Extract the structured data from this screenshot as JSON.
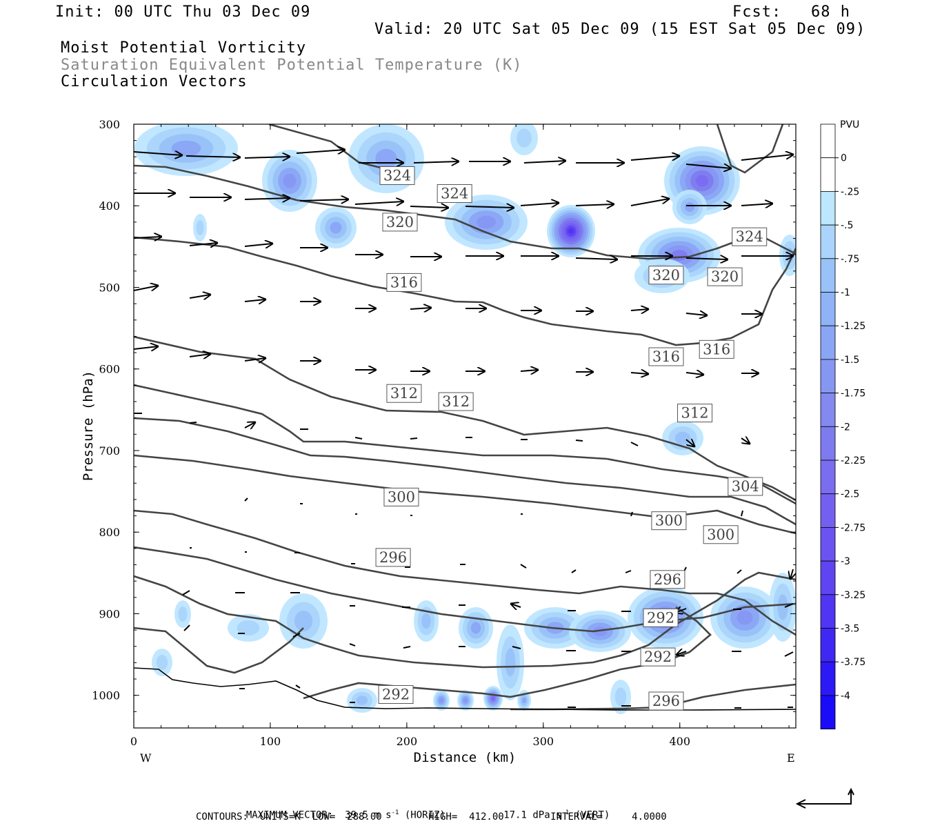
{
  "header": {
    "init": "Init: 00 UTC Thu 03 Dec 09",
    "fcst": "Fcst:   68 h",
    "valid": "Valid: 20 UTC Sat 05 Dec 09 (15 EST Sat 05 Dec 09)",
    "field1": "Moist Potential Vorticity",
    "field2": "Saturation Equivalent Potential Temperature (K)",
    "field3": "Circulation Vectors"
  },
  "footer": {
    "max_vector_label": "MAXIMUM VECTOR:",
    "horiz_value": "39.5 m s",
    "horiz_exp": "-1",
    "horiz_tag": "(HORIZ)",
    "vert_value": "17.1 dPa s",
    "vert_exp": "-1",
    "vert_tag": "(VERT)",
    "contours": "CONTOURS:  UNITS=K  LOW=  288.00        HIGH=  412.00        INTERVAL=     4.0000"
  },
  "colors": {
    "contour": "#444444",
    "vector": "#000000",
    "pv_levels": [
      "#ffffff",
      "#ffffff",
      "#bde6ff",
      "#aad4fb",
      "#98c2f8",
      "#8fb3f6",
      "#8aa5f4",
      "#8697f2",
      "#8489ef",
      "#7e7bee",
      "#7a6df0",
      "#7460f0",
      "#6a53f1",
      "#5f44f2",
      "#5035f3",
      "#4028f4",
      "#2d19f6",
      "#1a0cf8"
    ]
  },
  "chart_data": {
    "type": "heatmap",
    "title": "",
    "xlabel": "Distance (km)",
    "ylabel": "Pressure (hPa)",
    "xlim": [
      0,
      485
    ],
    "ylim": [
      1040,
      300
    ],
    "x_ticks": [
      "0",
      "100",
      "200",
      "300",
      "400"
    ],
    "y_ticks": [
      "300",
      "400",
      "500",
      "600",
      "700",
      "800",
      "900",
      "1000"
    ],
    "x_end_labels": {
      "left": "W",
      "right": "E"
    },
    "colorbar": {
      "units": "PVU",
      "ticks": [
        "0",
        "-.25",
        "-.5",
        "-.75",
        "-1",
        "-1.25",
        "-1.5",
        "-1.75",
        "-2",
        "-2.25",
        "-2.5",
        "-2.75",
        "-3",
        "-3.25",
        "-3.5",
        "-3.75",
        "-4"
      ]
    },
    "contour_labels": [
      {
        "text": "324",
        "x": 193,
        "p": 363
      },
      {
        "text": "324",
        "x": 235,
        "p": 385
      },
      {
        "text": "324",
        "x": 451,
        "p": 438
      },
      {
        "text": "320",
        "x": 195,
        "p": 420
      },
      {
        "text": "320",
        "x": 390,
        "p": 485
      },
      {
        "text": "320",
        "x": 433,
        "p": 487
      },
      {
        "text": "316",
        "x": 198,
        "p": 494
      },
      {
        "text": "316",
        "x": 390,
        "p": 585
      },
      {
        "text": "316",
        "x": 427,
        "p": 576
      },
      {
        "text": "312",
        "x": 198,
        "p": 630
      },
      {
        "text": "312",
        "x": 236,
        "p": 640
      },
      {
        "text": "312",
        "x": 411,
        "p": 654
      },
      {
        "text": "304",
        "x": 448,
        "p": 744
      },
      {
        "text": "300",
        "x": 196,
        "p": 757
      },
      {
        "text": "300",
        "x": 392,
        "p": 786
      },
      {
        "text": "300",
        "x": 430,
        "p": 803
      },
      {
        "text": "296",
        "x": 190,
        "p": 831
      },
      {
        "text": "296",
        "x": 391,
        "p": 858
      },
      {
        "text": "296",
        "x": 390,
        "p": 1007
      },
      {
        "text": "292",
        "x": 386,
        "p": 905
      },
      {
        "text": "292",
        "x": 384,
        "p": 953
      },
      {
        "text": "292",
        "x": 192,
        "p": 999
      }
    ]
  }
}
